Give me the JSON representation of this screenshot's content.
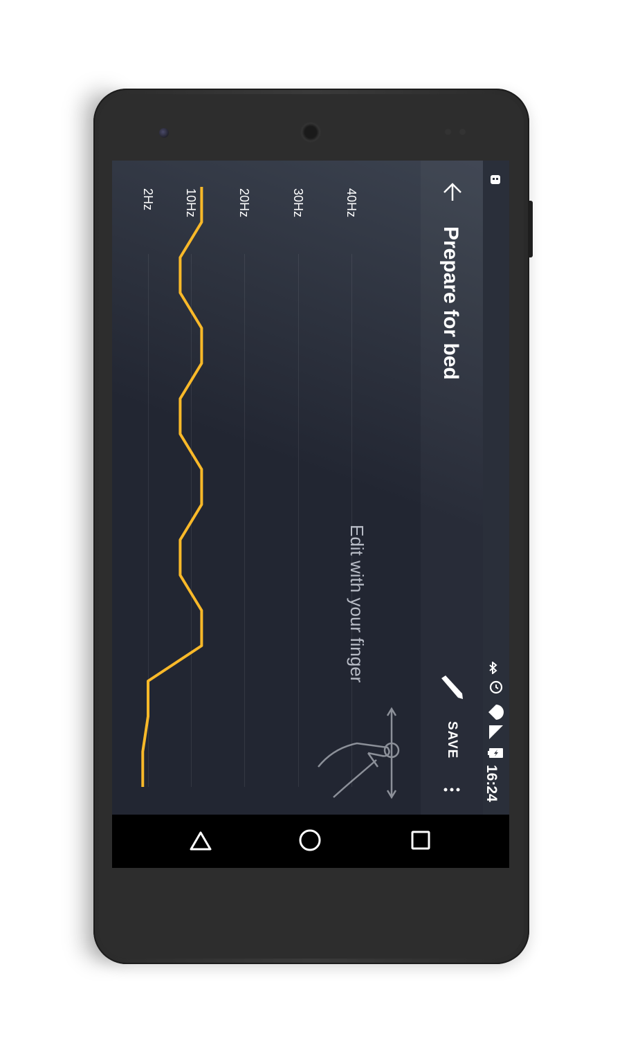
{
  "app": {
    "title": "Prepare for bed",
    "hint": "Edit with your finger",
    "save_label": "SAVE",
    "accent_color": "#f9b929",
    "background_color": "#222632"
  },
  "status_bar": {
    "time": "16:24",
    "icons": [
      "bluetooth-icon",
      "alarm-icon",
      "wifi-icon",
      "signal-icon",
      "battery-icon",
      "notification-icon"
    ]
  },
  "toolbar": {
    "icons": [
      "back-arrow-icon",
      "pencil-icon",
      "overflow-menu-icon"
    ]
  },
  "nav": {
    "icons": [
      "back-triangle-icon",
      "home-circle-icon",
      "recents-square-icon"
    ]
  },
  "chart_data": {
    "type": "line",
    "y_tick_labels": [
      "2Hz",
      "10Hz",
      "20Hz",
      "30Hz",
      "40Hz"
    ],
    "series": [
      {
        "values": [
          12,
          12,
          8,
          8,
          12,
          12,
          8,
          8,
          12,
          12,
          8,
          8,
          12,
          12,
          2,
          2,
          1,
          1
        ]
      }
    ]
  }
}
